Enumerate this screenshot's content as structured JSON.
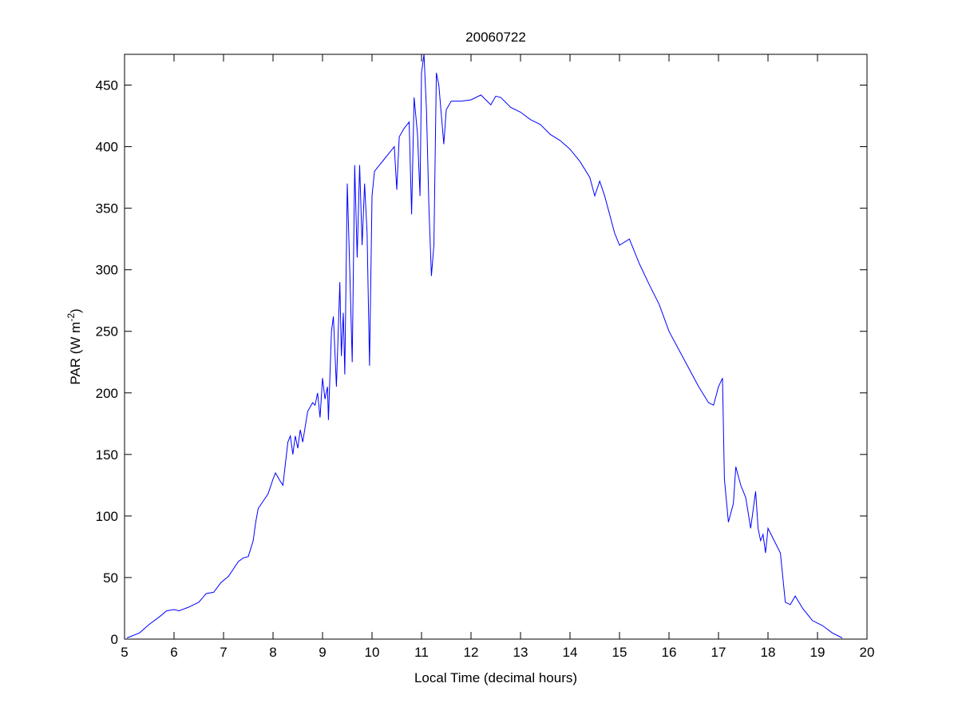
{
  "chart_data": {
    "type": "line",
    "title": "20060722",
    "xlabel": "Local Time (decimal hours)",
    "ylabel": {
      "main": "PAR (W m",
      "sup": "-2",
      "close": ")"
    },
    "xlim": [
      5,
      20
    ],
    "ylim": [
      0,
      475
    ],
    "xticks": [
      5,
      6,
      7,
      8,
      9,
      10,
      11,
      12,
      13,
      14,
      15,
      16,
      17,
      18,
      19,
      20
    ],
    "yticks": [
      0,
      50,
      100,
      150,
      200,
      250,
      300,
      350,
      400,
      450
    ],
    "grid": false,
    "line_color": "#0000ff",
    "series": [
      {
        "name": "PAR",
        "x": [
          5.05,
          5.3,
          5.5,
          5.7,
          5.85,
          6.0,
          6.1,
          6.3,
          6.5,
          6.65,
          6.8,
          6.95,
          7.1,
          7.3,
          7.4,
          7.5,
          7.6,
          7.65,
          7.7,
          7.8,
          7.9,
          8.0,
          8.05,
          8.15,
          8.2,
          8.3,
          8.35,
          8.4,
          8.45,
          8.5,
          8.55,
          8.6,
          8.7,
          8.8,
          8.85,
          8.9,
          8.95,
          9.0,
          9.05,
          9.1,
          9.12,
          9.18,
          9.22,
          9.28,
          9.35,
          9.38,
          9.42,
          9.45,
          9.5,
          9.55,
          9.6,
          9.65,
          9.7,
          9.75,
          9.8,
          9.85,
          9.9,
          9.95,
          10.0,
          10.05,
          10.15,
          10.25,
          10.35,
          10.45,
          10.5,
          10.55,
          10.65,
          10.75,
          10.8,
          10.85,
          10.92,
          10.97,
          11.0,
          11.05,
          11.1,
          11.15,
          11.2,
          11.25,
          11.3,
          11.35,
          11.45,
          11.5,
          11.6,
          11.8,
          12.0,
          12.2,
          12.4,
          12.5,
          12.6,
          12.8,
          13.0,
          13.2,
          13.4,
          13.6,
          13.8,
          14.0,
          14.2,
          14.4,
          14.5,
          14.6,
          14.7,
          14.8,
          14.9,
          15.0,
          15.2,
          15.4,
          15.6,
          15.8,
          16.0,
          16.2,
          16.4,
          16.6,
          16.8,
          16.9,
          17.0,
          17.08,
          17.12,
          17.2,
          17.3,
          17.35,
          17.45,
          17.55,
          17.65,
          17.75,
          17.8,
          17.85,
          17.9,
          17.95,
          18.0,
          18.1,
          18.25,
          18.35,
          18.45,
          18.55,
          18.7,
          18.9,
          19.1,
          19.3,
          19.5
        ],
        "y": [
          1,
          5,
          12,
          18,
          23,
          24,
          23,
          26,
          30,
          37,
          38,
          46,
          51,
          63,
          66,
          67,
          80,
          95,
          106,
          112,
          118,
          130,
          135,
          128,
          125,
          160,
          165,
          150,
          165,
          155,
          170,
          160,
          185,
          192,
          190,
          200,
          180,
          212,
          195,
          205,
          178,
          250,
          262,
          205,
          290,
          230,
          265,
          215,
          370,
          300,
          225,
          385,
          310,
          385,
          320,
          370,
          330,
          222,
          360,
          380,
          385,
          390,
          395,
          400,
          365,
          408,
          415,
          420,
          345,
          440,
          410,
          360,
          460,
          475,
          430,
          350,
          295,
          320,
          460,
          450,
          402,
          430,
          437,
          437,
          438,
          442,
          434,
          441,
          440,
          432,
          428,
          422,
          418,
          410,
          405,
          398,
          388,
          375,
          360,
          372,
          360,
          345,
          330,
          320,
          325,
          305,
          288,
          272,
          250,
          235,
          220,
          205,
          192,
          190,
          205,
          212,
          130,
          95,
          110,
          140,
          125,
          115,
          90,
          120,
          90,
          80,
          85,
          70,
          90,
          82,
          70,
          30,
          28,
          35,
          25,
          15,
          11,
          5,
          1
        ]
      }
    ]
  }
}
